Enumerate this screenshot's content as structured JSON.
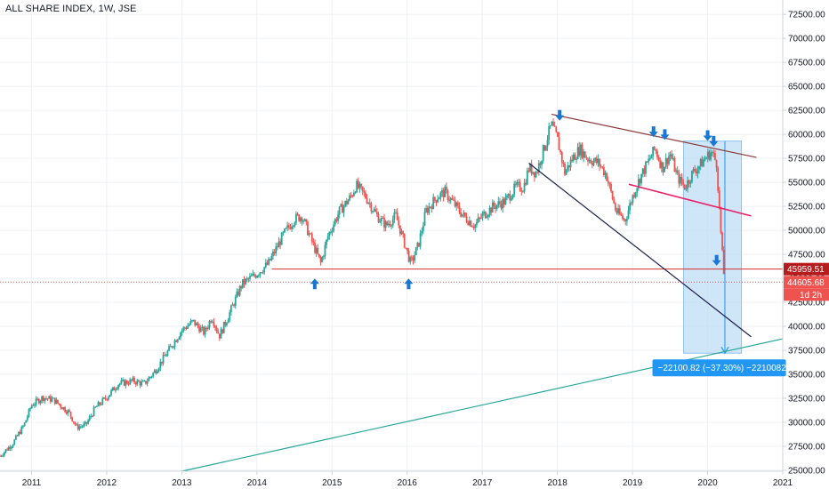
{
  "header": {
    "symbol_title": "ALL SHARE INDEX, 1W, JSE"
  },
  "chart_data": {
    "type": "candlestick",
    "title": "ALL SHARE INDEX, 1W, JSE",
    "x_ticks": [
      "2011",
      "2012",
      "2013",
      "2014",
      "2015",
      "2016",
      "2017",
      "2018",
      "2019",
      "2020",
      "2021"
    ],
    "y_ticks": [
      25000,
      27500,
      30000,
      32500,
      35000,
      37500,
      40000,
      42500,
      45000,
      47500,
      50000,
      52500,
      55000,
      57500,
      60000,
      62500,
      65000,
      67500,
      70000,
      72500
    ],
    "y_tick_labels": [
      "25000.00",
      "27500.00",
      "30000.00",
      "32500.00",
      "35000.00",
      "37500.00",
      "40000.00",
      "42500.00",
      "45000.00",
      "47500.00",
      "50000.00",
      "52500.00",
      "55000.00",
      "57500.00",
      "60000.00",
      "62500.00",
      "65000.00",
      "67500.00",
      "70000.00",
      "72500.00"
    ],
    "ylim": [
      24900,
      74000
    ],
    "xlim": [
      2010.58,
      2021.0
    ],
    "grid": true,
    "up_color": "#26a69a",
    "down_color": "#ef5350",
    "anchors": [
      [
        2010.58,
        26500
      ],
      [
        2010.75,
        27800
      ],
      [
        2010.9,
        29700
      ],
      [
        2011.0,
        31800
      ],
      [
        2011.15,
        32600
      ],
      [
        2011.3,
        32300
      ],
      [
        2011.5,
        31000
      ],
      [
        2011.6,
        29500
      ],
      [
        2011.72,
        29700
      ],
      [
        2011.85,
        31500
      ],
      [
        2012.0,
        32600
      ],
      [
        2012.15,
        34000
      ],
      [
        2012.35,
        34300
      ],
      [
        2012.5,
        34000
      ],
      [
        2012.65,
        35400
      ],
      [
        2012.85,
        37800
      ],
      [
        2013.0,
        39600
      ],
      [
        2013.15,
        40500
      ],
      [
        2013.3,
        39300
      ],
      [
        2013.4,
        41000
      ],
      [
        2013.5,
        39000
      ],
      [
        2013.6,
        40700
      ],
      [
        2013.8,
        44400
      ],
      [
        2014.0,
        45500
      ],
      [
        2014.15,
        46500
      ],
      [
        2014.35,
        49500
      ],
      [
        2014.5,
        51200
      ],
      [
        2014.6,
        51500
      ],
      [
        2014.75,
        48500
      ],
      [
        2014.85,
        46600
      ],
      [
        2014.95,
        49500
      ],
      [
        2015.1,
        52000
      ],
      [
        2015.25,
        53500
      ],
      [
        2015.32,
        54700
      ],
      [
        2015.45,
        53500
      ],
      [
        2015.6,
        51500
      ],
      [
        2015.72,
        50500
      ],
      [
        2015.85,
        51500
      ],
      [
        2015.95,
        49000
      ],
      [
        2016.05,
        46500
      ],
      [
        2016.15,
        48500
      ],
      [
        2016.25,
        52000
      ],
      [
        2016.4,
        53500
      ],
      [
        2016.5,
        54000
      ],
      [
        2016.6,
        53000
      ],
      [
        2016.75,
        51500
      ],
      [
        2016.9,
        50500
      ],
      [
        2017.0,
        51500
      ],
      [
        2017.15,
        52500
      ],
      [
        2017.3,
        53000
      ],
      [
        2017.45,
        54500
      ],
      [
        2017.55,
        54500
      ],
      [
        2017.62,
        56500
      ],
      [
        2017.72,
        56000
      ],
      [
        2017.82,
        58500
      ],
      [
        2017.92,
        61000
      ],
      [
        2018.0,
        59500
      ],
      [
        2018.1,
        56000
      ],
      [
        2018.2,
        57500
      ],
      [
        2018.3,
        58500
      ],
      [
        2018.4,
        57500
      ],
      [
        2018.55,
        57000
      ],
      [
        2018.65,
        55800
      ],
      [
        2018.78,
        52000
      ],
      [
        2018.9,
        51000
      ],
      [
        2019.0,
        53500
      ],
      [
        2019.1,
        55500
      ],
      [
        2019.2,
        57000
      ],
      [
        2019.3,
        58500
      ],
      [
        2019.4,
        56500
      ],
      [
        2019.5,
        58000
      ],
      [
        2019.6,
        55500
      ],
      [
        2019.7,
        54500
      ],
      [
        2019.8,
        56000
      ],
      [
        2019.9,
        56800
      ],
      [
        2019.97,
        57500
      ],
      [
        2020.05,
        58200
      ],
      [
        2020.12,
        57000
      ],
      [
        2020.18,
        49200
      ],
      [
        2020.21,
        45800
      ],
      [
        2020.23,
        44600
      ]
    ],
    "last_price": 44605.68,
    "last_price_label": "44605.68",
    "countdown": "1d 2h",
    "support_level": 45959.51,
    "support_label": "45959.51",
    "trendlines": [
      {
        "color": "#8b3a3a",
        "from": [
          2017.92,
          62100
        ],
        "to": [
          2020.65,
          57600
        ]
      },
      {
        "color": "#1a1f4e",
        "from": [
          2017.62,
          57000
        ],
        "to": [
          2020.58,
          38900
        ]
      },
      {
        "color": "#e91e63",
        "from": [
          2018.95,
          54800
        ],
        "to": [
          2020.58,
          51500
        ]
      },
      {
        "color": "#26a69a",
        "from": [
          2013.0,
          24900
        ],
        "to": [
          2021.0,
          38700
        ]
      }
    ],
    "measure_box": {
      "x0": 2019.68,
      "x1": 2020.45,
      "y_top": 59300,
      "y_bottom": 37200
    },
    "measure_label": "−22100.82 (−37.30%) −2210082",
    "arrow_markers": [
      {
        "x": 2018.03,
        "y": 61700,
        "dir": "down"
      },
      {
        "x": 2019.28,
        "y": 60000,
        "dir": "down"
      },
      {
        "x": 2019.43,
        "y": 59700,
        "dir": "down"
      },
      {
        "x": 2020.0,
        "y": 59600,
        "dir": "down"
      },
      {
        "x": 2020.08,
        "y": 59000,
        "dir": "down"
      },
      {
        "x": 2020.12,
        "y": 46600,
        "dir": "down"
      },
      {
        "x": 2014.77,
        "y": 44700,
        "dir": "up"
      },
      {
        "x": 2016.02,
        "y": 44700,
        "dir": "up"
      }
    ],
    "colors": {
      "grid": "#eef0f4",
      "axis_border": "#d1d4dc",
      "support_line": "#d32f2f",
      "support_badge": "#b71c1c",
      "last_price_badge": "#ef5350",
      "measure_fill": "#bfdcf5",
      "measure_stroke": "#90c2ee",
      "measure_label_bg": "#2196f3",
      "marker": "#1976d2"
    }
  }
}
